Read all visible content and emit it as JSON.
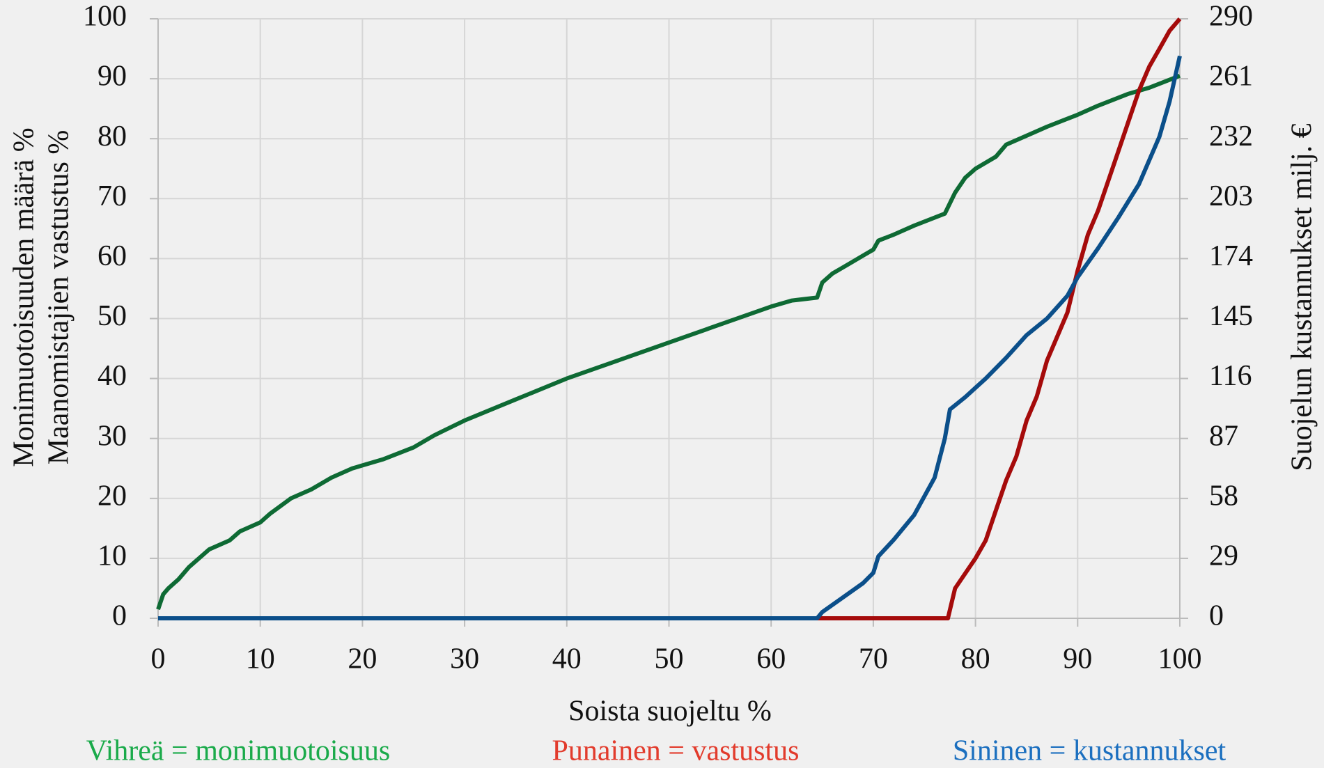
{
  "chart_data": {
    "type": "line",
    "xlabel": "Soista suojeltu %",
    "ylabel": [
      "Monimuotoisuuden määrä %",
      "Maanomistajien vastustus %"
    ],
    "y2label": "Suojelun kustannukset milj. €",
    "xlim": [
      0,
      100
    ],
    "xticks": [
      0,
      10,
      20,
      30,
      40,
      50,
      60,
      70,
      80,
      90,
      100
    ],
    "ylim": [
      0,
      100
    ],
    "yticks": [
      0,
      10,
      20,
      30,
      40,
      50,
      60,
      70,
      80,
      90,
      100
    ],
    "y2lim": [
      0,
      290
    ],
    "y2ticks": [
      0,
      29,
      58,
      87,
      116,
      145,
      174,
      203,
      232,
      261,
      290
    ],
    "grid": true,
    "series": [
      {
        "name": "Vihreä = monimuotoisuus",
        "color": "#0e6a34",
        "label_color": "#1aaa4a",
        "x": [
          0,
          0.5,
          1,
          2,
          3,
          4,
          5,
          7,
          8,
          10,
          11,
          13,
          15,
          17,
          19,
          20,
          22,
          25,
          27,
          30,
          35,
          40,
          45,
          50,
          55,
          60,
          62,
          64.5,
          65,
          66,
          67,
          68,
          69,
          70,
          70.5,
          72,
          74,
          77,
          78,
          79,
          80,
          82,
          83,
          85,
          87,
          90,
          92,
          95,
          97,
          100
        ],
        "values": [
          1.5,
          4,
          5,
          6.5,
          8.5,
          10,
          11.5,
          13,
          14.5,
          16,
          17.5,
          20,
          21.5,
          23.5,
          25,
          25.5,
          26.5,
          28.5,
          30.5,
          33,
          36.5,
          40,
          43,
          46,
          49,
          52,
          53,
          53.5,
          56,
          57.5,
          58.5,
          59.5,
          60.5,
          61.5,
          63,
          64,
          65.5,
          67.5,
          71,
          73.5,
          75,
          77,
          79,
          80.5,
          82,
          84,
          85.5,
          87.5,
          88.5,
          90.5
        ]
      },
      {
        "name": "Punainen = vastustus",
        "color": "#a50b0b",
        "label_color": "#e23b2c",
        "x": [
          0,
          77.3,
          78,
          80,
          81,
          82,
          83,
          84,
          85,
          86,
          87,
          88,
          89,
          90,
          91,
          92,
          93,
          94,
          95,
          96,
          97,
          98,
          99,
          100
        ],
        "values": [
          0,
          0,
          5,
          10,
          13,
          18,
          23,
          27,
          33,
          37,
          43,
          47,
          51,
          58,
          64,
          68,
          73,
          78,
          83,
          88,
          92,
          95,
          98,
          100
        ]
      },
      {
        "name": "Sininen = kustannukset",
        "color": "#0b4f8a",
        "label_color": "#1b6fbf",
        "axis": "y2",
        "x": [
          0,
          64.5,
          65,
          67,
          69,
          70,
          70.5,
          72,
          74,
          76,
          77,
          77.5,
          79,
          81,
          83,
          85,
          87,
          89,
          90,
          92,
          94,
          96,
          98,
          99,
          100
        ],
        "values": [
          0,
          0,
          3,
          10,
          17,
          22,
          30,
          38,
          50,
          68,
          87,
          101,
          107,
          116,
          126,
          137,
          145,
          156,
          165,
          179,
          194,
          210,
          233,
          250,
          272
        ]
      }
    ]
  }
}
